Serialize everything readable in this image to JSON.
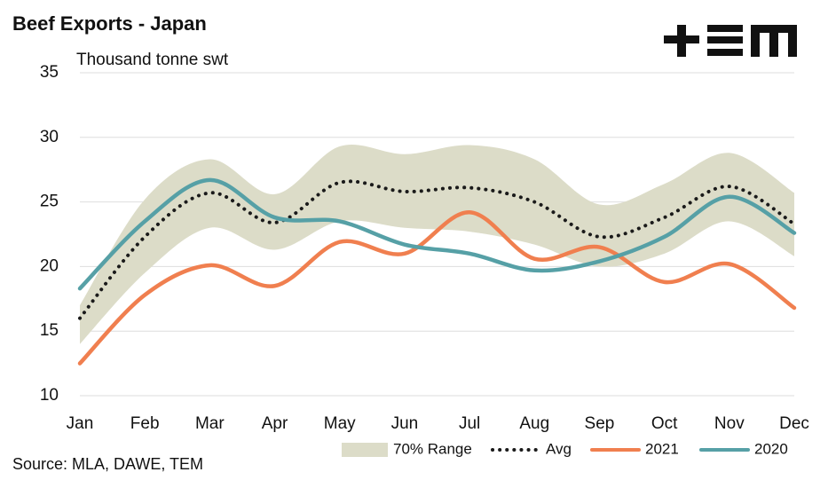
{
  "chart_data": {
    "type": "line",
    "title": "Beef Exports - Japan",
    "subtitle": "Thousand tonne swt",
    "source": "Source: MLA, DAWE, TEM",
    "categories": [
      "Jan",
      "Feb",
      "Mar",
      "Apr",
      "May",
      "Jun",
      "Jul",
      "Aug",
      "Sep",
      "Oct",
      "Nov",
      "Dec"
    ],
    "ylim": [
      10,
      35
    ],
    "yticks": [
      10,
      15,
      20,
      25,
      30,
      35
    ],
    "grid": true,
    "range": {
      "name": "70% Range",
      "color": "#dcdcc8",
      "lower": [
        14.0,
        19.5,
        23.0,
        21.3,
        23.5,
        23.0,
        22.7,
        21.7,
        20.0,
        21.0,
        23.5,
        20.8
      ],
      "upper": [
        17.0,
        25.2,
        28.3,
        25.6,
        29.3,
        28.7,
        29.4,
        28.3,
        24.8,
        26.4,
        28.8,
        25.7
      ]
    },
    "series": [
      {
        "name": "Avg",
        "color": "#1a1a1a",
        "dotted": true,
        "values": [
          16.0,
          22.3,
          25.7,
          23.4,
          26.5,
          25.8,
          26.1,
          25.0,
          22.3,
          23.8,
          26.2,
          23.3
        ]
      },
      {
        "name": "2021",
        "color": "#f07f4f",
        "values": [
          12.5,
          17.8,
          20.1,
          18.5,
          21.9,
          21.0,
          24.2,
          20.6,
          21.5,
          18.8,
          20.2,
          16.8
        ]
      },
      {
        "name": "2020",
        "color": "#56a0a6",
        "values": [
          18.3,
          23.5,
          26.7,
          23.8,
          23.5,
          21.7,
          21.0,
          19.7,
          20.4,
          22.3,
          25.4,
          22.6
        ]
      }
    ]
  }
}
